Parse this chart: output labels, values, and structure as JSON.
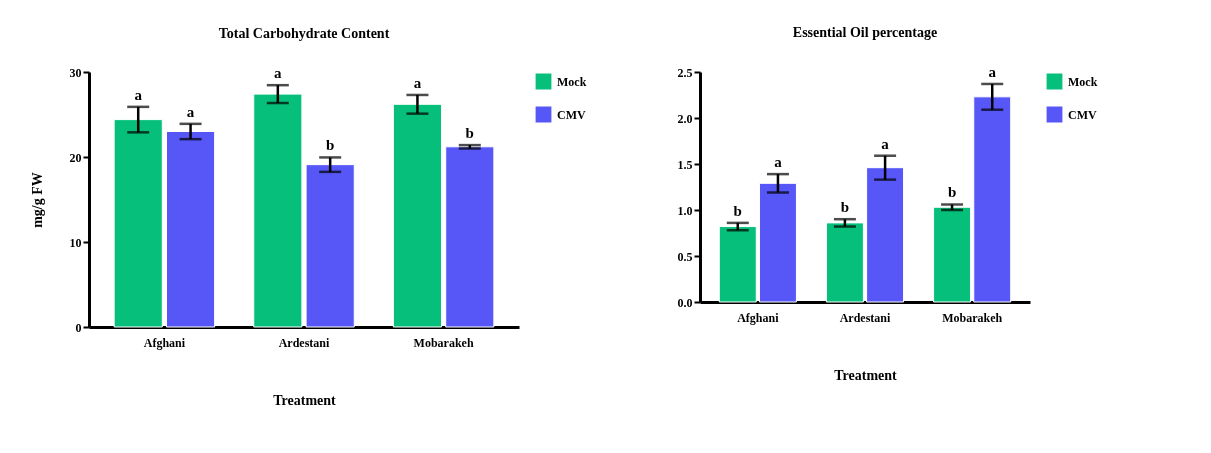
{
  "chart_data": [
    {
      "type": "bar",
      "title": "Total Carbohydrate Content",
      "xlabel": "Treatment",
      "ylabel": "mg/g FW",
      "categories": [
        "Afghani",
        "Ardestani",
        "Mobarakeh"
      ],
      "series": [
        {
          "name": "Mock",
          "color": "#06bf7a",
          "values": [
            24.4,
            27.4,
            26.2
          ],
          "errors": [
            1.5,
            1.05,
            1.1
          ],
          "value_labels": [
            "a",
            "a",
            "a"
          ]
        },
        {
          "name": "CMV",
          "color": "#5757f8",
          "values": [
            23.0,
            19.1,
            21.2
          ],
          "errors": [
            0.9,
            0.85,
            0.2
          ],
          "value_labels": [
            "a",
            "b",
            "b"
          ]
        }
      ],
      "ylim": [
        0,
        30
      ],
      "yticks": [
        0,
        10,
        20,
        30
      ],
      "grid": false,
      "legend": "top right"
    },
    {
      "type": "bar",
      "title": "Essential Oil percentage",
      "xlabel": "Treatment",
      "categories": [
        "Afghani",
        "Ardestani",
        "Mobarakeh"
      ],
      "series": [
        {
          "name": "Mock",
          "color": "#06bf7a",
          "values": [
            0.82,
            0.86,
            1.03
          ],
          "errors": [
            0.04,
            0.04,
            0.03
          ],
          "value_labels": [
            "b",
            "b",
            "b"
          ]
        },
        {
          "name": "CMV",
          "color": "#5757f8",
          "values": [
            1.29,
            1.46,
            2.23
          ],
          "errors": [
            0.1,
            0.13,
            0.14
          ],
          "value_labels": [
            "a",
            "a",
            "a"
          ]
        }
      ],
      "ylim": [
        0,
        2.5
      ],
      "yticks": [
        {
          "value": 0,
          "label": "0.0"
        },
        {
          "value": 0.5,
          "label": "0.5"
        },
        {
          "value": 1,
          "label": "1.0"
        },
        {
          "value": 1.5,
          "label": "1.5"
        },
        {
          "value": 2,
          "label": "2.0"
        },
        {
          "value": 2.5,
          "label": "2.5"
        }
      ],
      "grid": false,
      "legend": "right"
    }
  ]
}
